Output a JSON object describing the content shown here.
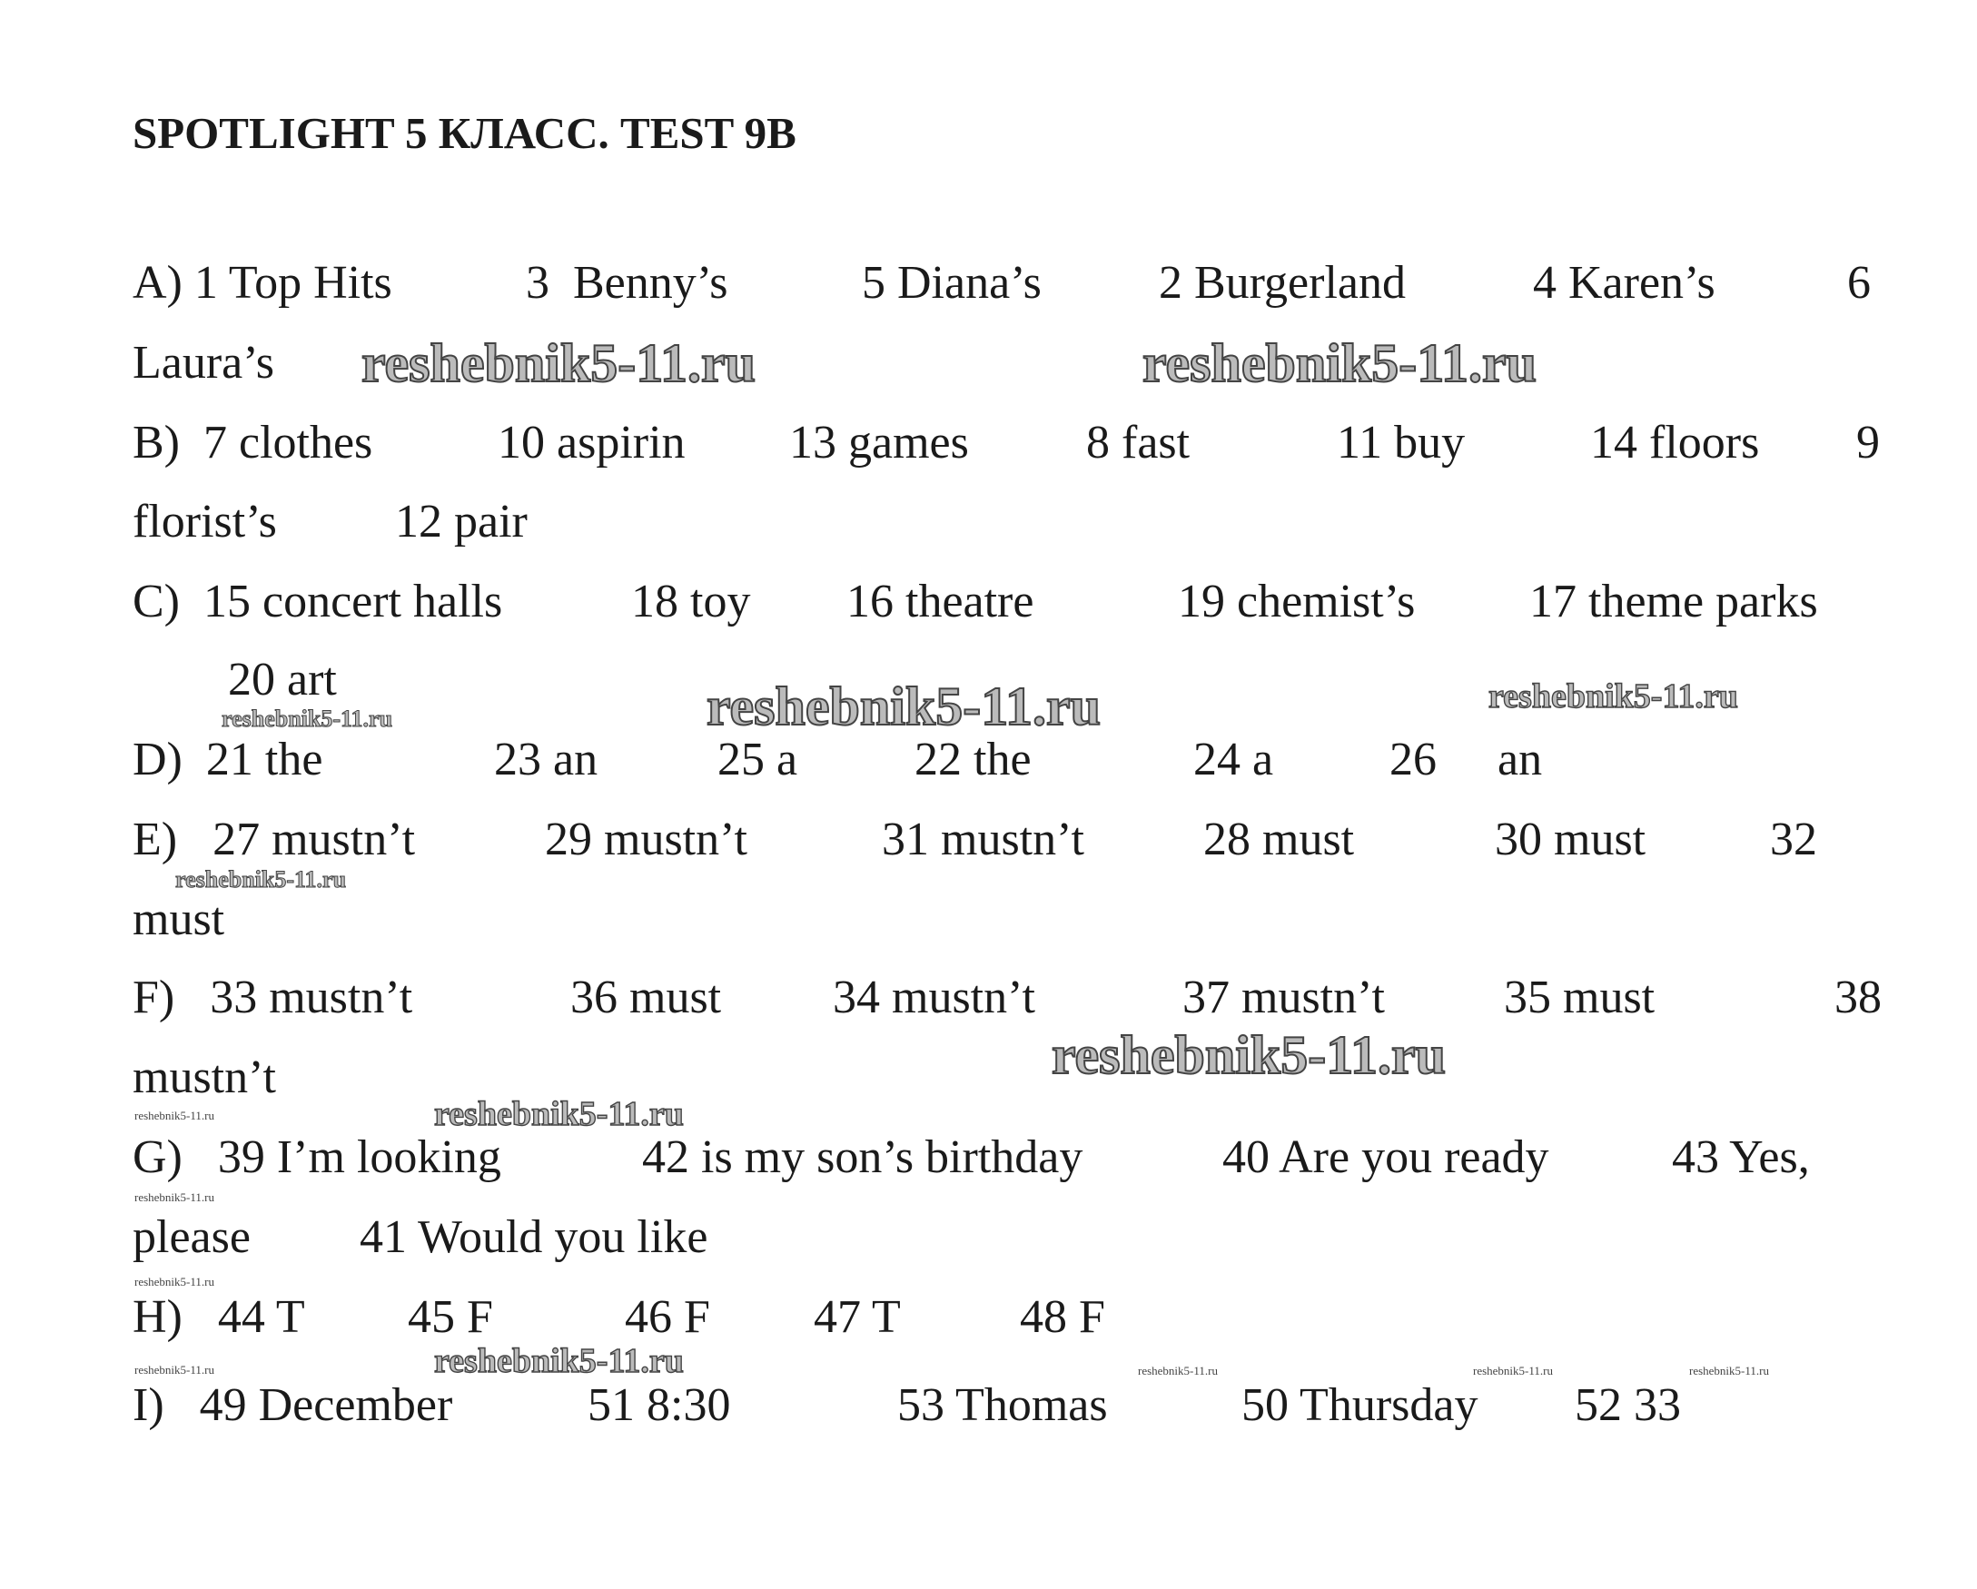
{
  "title": "SPOTLIGHT 5 КЛАСС. TEST 9B",
  "watermark": "reshebnik5-11.ru",
  "sections": {
    "A": [
      "A) 1 Top Hits",
      "3  Benny’s",
      "5 Diana’s",
      "2 Burgerland",
      "4 Karen’s",
      "6",
      "Laura’s"
    ],
    "B": [
      "B)  7 clothes",
      "10 aspirin",
      "13 games",
      "8 fast",
      "11 buy",
      "14 floors",
      "9",
      "florist’s",
      "12 pair"
    ],
    "C": [
      "C)  15 concert halls",
      "18 toy",
      "16 theatre",
      "19 chemist’s",
      "17 theme parks",
      "20 art"
    ],
    "D": [
      "D)  21 the",
      "23 an",
      "25 a",
      "22 the",
      "24 a",
      "26",
      "an"
    ],
    "E": [
      "E)   27 mustn’t",
      "29 mustn’t",
      "31 mustn’t",
      "28 must",
      "30 must",
      "32",
      "must"
    ],
    "F": [
      "F)   33 mustn’t",
      "36 must",
      "34 mustn’t",
      "37 mustn’t",
      "35 must",
      "38",
      "mustn’t"
    ],
    "G": [
      "G)   39 I’m looking",
      "42 is my son’s birthday",
      "40 Are you ready",
      "43 Yes,",
      "please",
      "41 Would you like"
    ],
    "H": [
      "H)   44 T",
      "45 F",
      "46 F",
      "47 T",
      "48 F"
    ],
    "I": [
      "I)   49 December",
      "51 8:30",
      "53 Thomas",
      "50 Thursday",
      "52 33"
    ]
  }
}
